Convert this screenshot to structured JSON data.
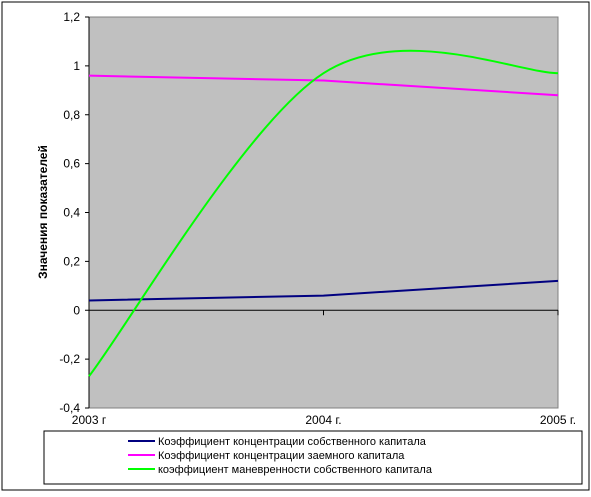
{
  "chart_data": {
    "type": "line",
    "title": "",
    "xlabel": "",
    "ylabel": "Значения показателей",
    "x": [
      "2003 г",
      "2004 г.",
      "2005 г."
    ],
    "ylim": [
      -0.4,
      1.2
    ],
    "yticks": [
      "1,2",
      "1",
      "0,8",
      "0,6",
      "0,4",
      "0,2",
      "0",
      "-0,2",
      "-0,4"
    ],
    "grid": false,
    "plot_background": "#c0c0c0",
    "legend_position": "bottom",
    "series": [
      {
        "name": "Коэффициент концентрации собственного капитала",
        "color": "#000080",
        "smooth": false,
        "values": [
          0.04,
          0.06,
          0.12
        ]
      },
      {
        "name": "Коэффициент концентрации заемного капитала",
        "color": "#ff00ff",
        "smooth": false,
        "values": [
          0.96,
          0.94,
          0.88
        ]
      },
      {
        "name": "коэффициент маневренности собственного капитала",
        "color": "#00ff00",
        "smooth": true,
        "values": [
          -0.27,
          0.97,
          0.97
        ]
      }
    ]
  }
}
